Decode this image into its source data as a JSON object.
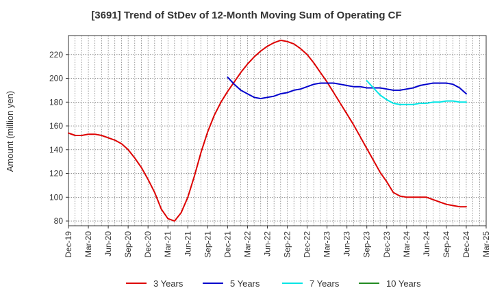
{
  "chart_data": {
    "type": "line",
    "title": "[3691]  Trend of StDev of 12-Month Moving Sum of Operating CF",
    "ylabel": "Amount (million yen)",
    "xlabel": "",
    "ylim": [
      76,
      236
    ],
    "yticks": [
      80,
      100,
      120,
      140,
      160,
      180,
      200,
      220
    ],
    "x_start": "Dec-19",
    "x_end": "Mar-25",
    "xticks": [
      "Dec-19",
      "Mar-20",
      "Jun-20",
      "Sep-20",
      "Dec-20",
      "Mar-21",
      "Jun-21",
      "Sep-21",
      "Dec-21",
      "Mar-22",
      "Jun-22",
      "Sep-22",
      "Dec-22",
      "Mar-23",
      "Jun-23",
      "Sep-23",
      "Dec-23",
      "Mar-24",
      "Jun-24",
      "Sep-24",
      "Dec-24",
      "Mar-25"
    ],
    "grid": "dotted",
    "legend_position": "bottom",
    "series": [
      {
        "name": "3 Years",
        "color": "#dd0000",
        "x": [
          "Dec-19",
          "Jan-20",
          "Feb-20",
          "Mar-20",
          "Apr-20",
          "May-20",
          "Jun-20",
          "Jul-20",
          "Aug-20",
          "Sep-20",
          "Oct-20",
          "Nov-20",
          "Dec-20",
          "Jan-21",
          "Feb-21",
          "Mar-21",
          "Apr-21",
          "May-21",
          "Jun-21",
          "Jul-21",
          "Aug-21",
          "Sep-21",
          "Oct-21",
          "Nov-21",
          "Dec-21",
          "Jan-22",
          "Feb-22",
          "Mar-22",
          "Apr-22",
          "May-22",
          "Jun-22",
          "Jul-22",
          "Aug-22",
          "Sep-22",
          "Oct-22",
          "Nov-22",
          "Dec-22",
          "Jan-23",
          "Feb-23",
          "Mar-23",
          "Apr-23",
          "May-23",
          "Jun-23",
          "Jul-23",
          "Aug-23",
          "Sep-23",
          "Oct-23",
          "Nov-23",
          "Dec-23",
          "Jan-24",
          "Feb-24",
          "Mar-24",
          "Apr-24",
          "May-24",
          "Jun-24",
          "Jul-24",
          "Aug-24",
          "Sep-24",
          "Oct-24",
          "Nov-24",
          "Dec-24"
        ],
        "values": [
          154,
          152,
          152,
          153,
          153,
          152,
          150,
          148,
          145,
          140,
          133,
          125,
          115,
          104,
          90,
          82,
          80,
          87,
          100,
          118,
          138,
          155,
          169,
          180,
          189,
          197,
          205,
          212,
          218,
          223,
          227,
          230,
          232,
          231,
          229,
          225,
          220,
          213,
          205,
          197,
          188,
          179,
          170,
          161,
          151,
          141,
          131,
          121,
          113,
          104,
          101,
          100,
          100,
          100,
          100,
          98,
          96,
          94,
          93,
          92,
          92
        ],
        "values_note": ""
      },
      {
        "name": "5 Years",
        "color": "#0000cc",
        "x": [
          "Dec-21",
          "Jan-22",
          "Feb-22",
          "Mar-22",
          "Apr-22",
          "May-22",
          "Jun-22",
          "Jul-22",
          "Aug-22",
          "Sep-22",
          "Oct-22",
          "Nov-22",
          "Dec-22",
          "Jan-23",
          "Feb-23",
          "Mar-23",
          "Apr-23",
          "May-23",
          "Jun-23",
          "Jul-23",
          "Aug-23",
          "Sep-23",
          "Oct-23",
          "Nov-23",
          "Dec-23",
          "Jan-24",
          "Feb-24",
          "Mar-24",
          "Apr-24",
          "May-24",
          "Jun-24",
          "Jul-24",
          "Aug-24",
          "Sep-24",
          "Oct-24",
          "Nov-24",
          "Dec-24"
        ],
        "values": [
          201,
          195,
          190,
          187,
          184,
          183,
          184,
          185,
          187,
          188,
          190,
          191,
          193,
          195,
          196,
          196,
          196,
          195,
          194,
          193,
          193,
          192,
          192,
          192,
          191,
          190,
          190,
          191,
          192,
          194,
          195,
          196,
          196,
          196,
          195,
          192,
          187
        ]
      },
      {
        "name": "7 Years",
        "color": "#00e5e5",
        "x": [
          "Sep-23",
          "Oct-23",
          "Nov-23",
          "Dec-23",
          "Jan-24",
          "Feb-24",
          "Mar-24",
          "Apr-24",
          "May-24",
          "Jun-24",
          "Jul-24",
          "Aug-24",
          "Sep-24",
          "Oct-24",
          "Nov-24",
          "Dec-24"
        ],
        "values": [
          198,
          192,
          186,
          182,
          179,
          178,
          178,
          178,
          179,
          179,
          180,
          180,
          181,
          181,
          180,
          180
        ]
      },
      {
        "name": "10 Years",
        "color": "#228b22",
        "x": [],
        "values": []
      }
    ]
  }
}
